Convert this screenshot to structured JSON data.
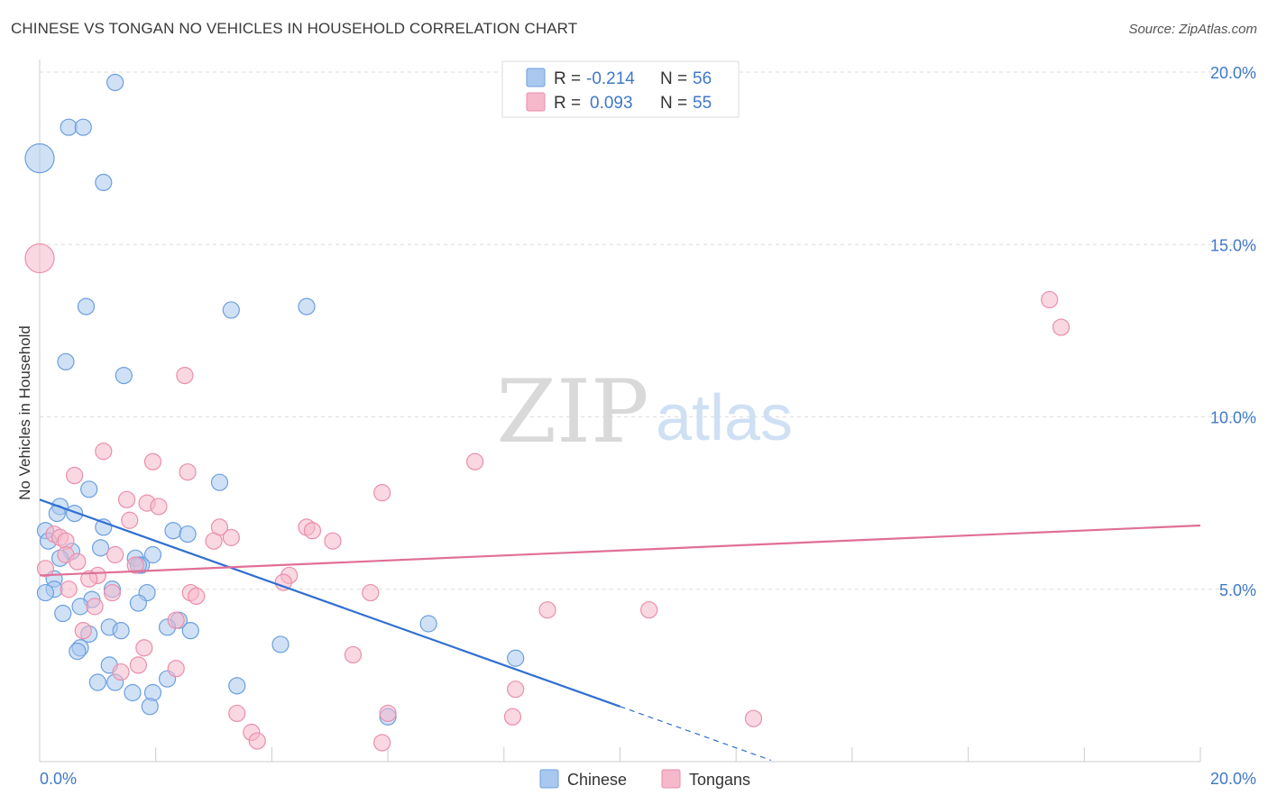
{
  "title": "CHINESE VS TONGAN NO VEHICLES IN HOUSEHOLD CORRELATION CHART",
  "source": "Source: ZipAtlas.com",
  "watermark": {
    "zip": "ZIP",
    "atlas": "atlas"
  },
  "legend_stats": [
    {
      "r_label": "R =",
      "r_value": "-0.214",
      "n_label": "N =",
      "n_value": "56"
    },
    {
      "r_label": "R =",
      "r_value": "0.093",
      "n_label": "N =",
      "n_value": "55"
    }
  ],
  "bottom_legend": [
    "Chinese",
    "Tongans"
  ],
  "colors": {
    "chinese_fill": "#a9c8ef",
    "chinese_stroke": "#6c9fdf",
    "chinese_line": "#2f6fd0",
    "tongan_fill": "#f6b8cb",
    "tongan_stroke": "#ea8eab",
    "tongan_line": "#e06f98",
    "tick_text": "#3f78c8",
    "grid": "#dddddd"
  },
  "chart_data": {
    "type": "scatter",
    "title": "CHINESE VS TONGAN NO VEHICLES IN HOUSEHOLD CORRELATION CHART",
    "xlabel": "",
    "ylabel": "No Vehicles in Household",
    "xlim": [
      0,
      20
    ],
    "ylim": [
      0,
      20
    ],
    "x_tick_labels": [
      "0.0%",
      "20.0%"
    ],
    "y_ticks": [
      5,
      10,
      15,
      20
    ],
    "y_tick_labels": [
      "5.0%",
      "10.0%",
      "15.0%",
      "20.0%"
    ],
    "grid": true,
    "legend_placement": "top-center",
    "series": [
      {
        "name": "Chinese",
        "r": -0.214,
        "n": 56,
        "trend": {
          "x0": 0.0,
          "y0": 7.6,
          "x1": 10.0,
          "y1": 1.6,
          "dash_to_x": 12.6
        },
        "points": [
          [
            0.0,
            17.5,
            3
          ],
          [
            1.3,
            19.7,
            1
          ],
          [
            0.5,
            18.4,
            1
          ],
          [
            0.75,
            18.4,
            1
          ],
          [
            1.1,
            16.8,
            1
          ],
          [
            0.8,
            13.2,
            1
          ],
          [
            3.3,
            13.1,
            1
          ],
          [
            4.6,
            13.2,
            1
          ],
          [
            0.45,
            11.6,
            1
          ],
          [
            1.45,
            11.2,
            1
          ],
          [
            3.1,
            8.1,
            1
          ],
          [
            0.85,
            7.9,
            1
          ],
          [
            0.35,
            7.4,
            1
          ],
          [
            0.6,
            7.2,
            1
          ],
          [
            0.3,
            7.2,
            1
          ],
          [
            0.1,
            6.7,
            1
          ],
          [
            1.1,
            6.8,
            1
          ],
          [
            2.3,
            6.7,
            1
          ],
          [
            2.55,
            6.6,
            1
          ],
          [
            0.15,
            6.4,
            1
          ],
          [
            1.05,
            6.2,
            1
          ],
          [
            0.55,
            6.1,
            1
          ],
          [
            1.65,
            5.9,
            1
          ],
          [
            1.95,
            6.0,
            1
          ],
          [
            0.35,
            5.9,
            1
          ],
          [
            1.75,
            5.7,
            1
          ],
          [
            0.25,
            5.3,
            1
          ],
          [
            0.25,
            5.0,
            1
          ],
          [
            1.25,
            5.0,
            1
          ],
          [
            0.1,
            4.9,
            1
          ],
          [
            1.85,
            4.9,
            1
          ],
          [
            0.9,
            4.7,
            1
          ],
          [
            1.7,
            4.6,
            1
          ],
          [
            0.7,
            4.5,
            1
          ],
          [
            0.4,
            4.3,
            1
          ],
          [
            2.4,
            4.1,
            1
          ],
          [
            6.7,
            4.0,
            1
          ],
          [
            1.2,
            3.9,
            1
          ],
          [
            2.2,
            3.9,
            1
          ],
          [
            1.4,
            3.8,
            1
          ],
          [
            2.6,
            3.8,
            1
          ],
          [
            0.85,
            3.7,
            1
          ],
          [
            4.15,
            3.4,
            1
          ],
          [
            0.7,
            3.3,
            1
          ],
          [
            0.65,
            3.2,
            1
          ],
          [
            8.2,
            3.0,
            1
          ],
          [
            1.2,
            2.8,
            1
          ],
          [
            2.2,
            2.4,
            1
          ],
          [
            1.3,
            2.3,
            1
          ],
          [
            1.0,
            2.3,
            1
          ],
          [
            3.4,
            2.2,
            1
          ],
          [
            1.6,
            2.0,
            1
          ],
          [
            1.95,
            2.0,
            1
          ],
          [
            1.9,
            1.6,
            1
          ],
          [
            6.0,
            1.3,
            1
          ],
          [
            1.7,
            5.7,
            1
          ]
        ]
      },
      {
        "name": "Tongans",
        "r": 0.093,
        "n": 55,
        "trend": {
          "x0": 0.0,
          "y0": 5.4,
          "x1": 20.0,
          "y1": 6.85
        },
        "points": [
          [
            0.0,
            14.6,
            3
          ],
          [
            17.4,
            13.4,
            1
          ],
          [
            17.6,
            12.6,
            1
          ],
          [
            2.5,
            11.2,
            1
          ],
          [
            1.1,
            9.0,
            1
          ],
          [
            7.5,
            8.7,
            1
          ],
          [
            1.95,
            8.7,
            1
          ],
          [
            2.55,
            8.4,
            1
          ],
          [
            0.6,
            8.3,
            1
          ],
          [
            5.9,
            7.8,
            1
          ],
          [
            1.5,
            7.6,
            1
          ],
          [
            1.85,
            7.5,
            1
          ],
          [
            2.05,
            7.4,
            1
          ],
          [
            1.55,
            7.0,
            1
          ],
          [
            3.1,
            6.8,
            1
          ],
          [
            4.6,
            6.8,
            1
          ],
          [
            4.7,
            6.7,
            1
          ],
          [
            0.25,
            6.6,
            1
          ],
          [
            0.35,
            6.5,
            1
          ],
          [
            0.45,
            6.4,
            1
          ],
          [
            3.3,
            6.5,
            1
          ],
          [
            3.0,
            6.4,
            1
          ],
          [
            5.05,
            6.4,
            1
          ],
          [
            0.45,
            6.0,
            1
          ],
          [
            1.3,
            6.0,
            1
          ],
          [
            0.65,
            5.8,
            1
          ],
          [
            1.65,
            5.7,
            1
          ],
          [
            0.1,
            5.6,
            1
          ],
          [
            4.3,
            5.4,
            1
          ],
          [
            1.0,
            5.4,
            1
          ],
          [
            0.85,
            5.3,
            1
          ],
          [
            4.2,
            5.2,
            1
          ],
          [
            0.5,
            5.0,
            1
          ],
          [
            1.25,
            4.9,
            1
          ],
          [
            2.6,
            4.9,
            1
          ],
          [
            5.7,
            4.9,
            1
          ],
          [
            2.7,
            4.8,
            1
          ],
          [
            0.95,
            4.5,
            1
          ],
          [
            8.75,
            4.4,
            1
          ],
          [
            10.5,
            4.4,
            1
          ],
          [
            2.35,
            4.1,
            1
          ],
          [
            0.75,
            3.8,
            1
          ],
          [
            1.8,
            3.3,
            1
          ],
          [
            5.4,
            3.1,
            1
          ],
          [
            1.7,
            2.8,
            1
          ],
          [
            2.35,
            2.7,
            1
          ],
          [
            1.4,
            2.6,
            1
          ],
          [
            8.2,
            2.1,
            1
          ],
          [
            3.4,
            1.4,
            1
          ],
          [
            6.0,
            1.4,
            1
          ],
          [
            8.15,
            1.3,
            1
          ],
          [
            12.3,
            1.25,
            1
          ],
          [
            3.65,
            0.85,
            1
          ],
          [
            3.75,
            0.6,
            1
          ],
          [
            5.9,
            0.55,
            1
          ]
        ]
      }
    ]
  }
}
